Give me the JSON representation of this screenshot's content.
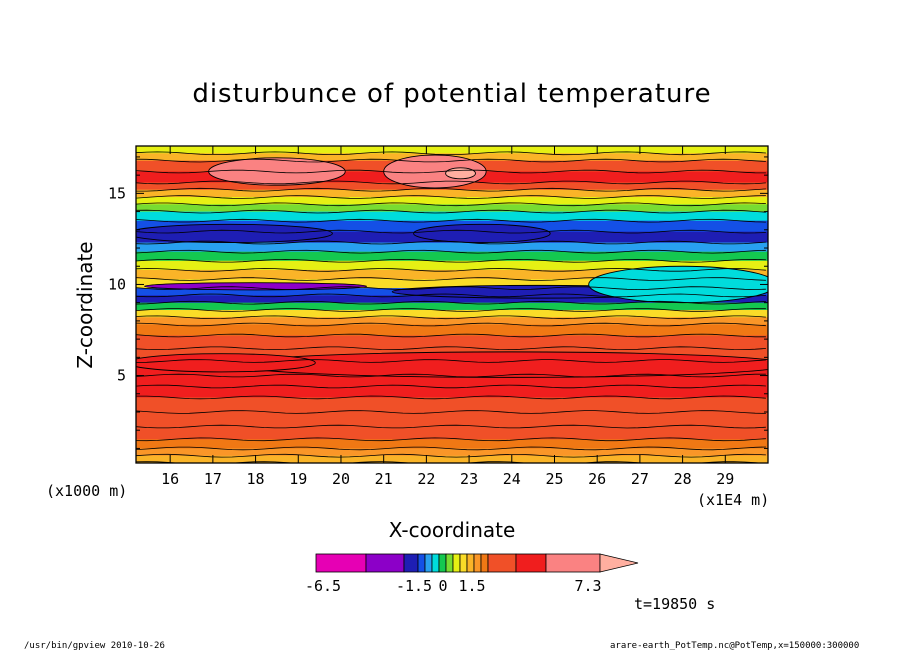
{
  "chart_data": {
    "type": "contour",
    "title": "disturbunce of potential temperature",
    "xlabel": "X-coordinate",
    "ylabel": "Z-coordinate",
    "x_unit_left": "(x1000 m)",
    "x_unit_right": "(x1E4 m)",
    "xlim": [
      15.2,
      30
    ],
    "ylim": [
      0.2,
      17.6
    ],
    "x_ticks": [
      16,
      17,
      18,
      19,
      20,
      21,
      22,
      23,
      24,
      25,
      26,
      27,
      28,
      29
    ],
    "y_ticks": [
      5,
      10,
      15
    ],
    "colorbar": {
      "levels": [
        -6.5,
        -4.5,
        -2.5,
        -1.5,
        -1.2,
        -0.9,
        -0.6,
        -0.3,
        0,
        0.3,
        0.6,
        0.9,
        1.2,
        1.5,
        2.5,
        3.5,
        5.5,
        7.3
      ],
      "colors": [
        "#e600b4",
        "#8c00c8",
        "#1e1eb4",
        "#1450e6",
        "#28a0f0",
        "#00dcdc",
        "#14c850",
        "#78dc32",
        "#e6f014",
        "#fadc28",
        "#fab428",
        "#fa9628",
        "#f07814",
        "#f05028",
        "#f01e1e",
        "#fa8282",
        "#ffafa0"
      ],
      "labels": [
        "-6.5",
        "-1.5",
        "0",
        "1.5",
        "7.3"
      ]
    },
    "time_label": "t=19850 s",
    "bands": [
      {
        "z": 17.6,
        "v": 0.2
      },
      {
        "z": 17.2,
        "v": 0.6
      },
      {
        "z": 16.8,
        "v": 1.6
      },
      {
        "z": 16.2,
        "v": 3.0
      },
      {
        "z": 15.6,
        "v": 1.7
      },
      {
        "z": 15.2,
        "v": 0.8
      },
      {
        "z": 14.8,
        "v": 0.2
      },
      {
        "z": 14.4,
        "v": -0.3
      },
      {
        "z": 14.0,
        "v": -0.7
      },
      {
        "z": 13.5,
        "v": -1.3
      },
      {
        "z": 12.9,
        "v": -1.9
      },
      {
        "z": 12.3,
        "v": -1.0
      },
      {
        "z": 11.8,
        "v": -0.4
      },
      {
        "z": 11.3,
        "v": 0.2
      },
      {
        "z": 10.8,
        "v": 0.7
      },
      {
        "z": 10.3,
        "v": 0.3
      },
      {
        "z": 9.8,
        "v": -1.3
      },
      {
        "z": 9.4,
        "v": -2.0
      },
      {
        "z": 9.0,
        "v": -0.4
      },
      {
        "z": 8.6,
        "v": 0.4
      },
      {
        "z": 8.2,
        "v": 1.0
      },
      {
        "z": 7.8,
        "v": 1.3
      },
      {
        "z": 7.2,
        "v": 1.8
      },
      {
        "z": 6.5,
        "v": 2.2
      },
      {
        "z": 5.8,
        "v": 2.8
      },
      {
        "z": 5.0,
        "v": 3.0
      },
      {
        "z": 4.4,
        "v": 2.6
      },
      {
        "z": 3.8,
        "v": 2.1
      },
      {
        "z": 3.0,
        "v": 1.7
      },
      {
        "z": 2.2,
        "v": 1.8
      },
      {
        "z": 1.5,
        "v": 1.4
      },
      {
        "z": 1.0,
        "v": 1.1
      },
      {
        "z": 0.6,
        "v": 0.7
      },
      {
        "z": 0.2,
        "v": 0.2
      }
    ],
    "features": [
      {
        "name": "upper-warm-core-1",
        "x": 18.5,
        "z": 16.2,
        "rx": 1.6,
        "rz": 0.75,
        "v": 3.5
      },
      {
        "name": "upper-warm-core-2",
        "x": 22.2,
        "z": 16.2,
        "rx": 1.2,
        "rz": 0.9,
        "v": 3.5
      },
      {
        "name": "upper-warm-peak",
        "x": 22.8,
        "z": 16.1,
        "rx": 0.35,
        "rz": 0.3,
        "v": 6.0
      },
      {
        "name": "upper-cold-core-1",
        "x": 17.4,
        "z": 12.8,
        "rx": 2.4,
        "rz": 0.5,
        "v": -2.0
      },
      {
        "name": "upper-cold-core-2",
        "x": 23.3,
        "z": 12.8,
        "rx": 1.6,
        "rz": 0.5,
        "v": -2.0
      },
      {
        "name": "mid-cold-streak",
        "x": 18.0,
        "z": 9.9,
        "rx": 2.6,
        "rz": 0.2,
        "v": -4.0
      },
      {
        "name": "mid-cold-right",
        "x": 24.6,
        "z": 9.6,
        "rx": 3.4,
        "rz": 0.35,
        "v": -2.2
      },
      {
        "name": "right-cyan-zone",
        "x": 28.0,
        "z": 10.0,
        "rx": 2.2,
        "rz": 1.0,
        "v": -0.8
      },
      {
        "name": "lower-warm-core",
        "x": 24.0,
        "z": 5.6,
        "rx": 6.5,
        "rz": 0.7,
        "v": 3.4
      },
      {
        "name": "lower-warm-core-left",
        "x": 17.2,
        "z": 5.7,
        "rx": 2.2,
        "rz": 0.5,
        "v": 3.4
      }
    ]
  },
  "footer": {
    "left": "/usr/bin/gpview   2010-10-26",
    "right": "arare-earth_PotTemp.nc@PotTemp,x=150000:300000"
  }
}
